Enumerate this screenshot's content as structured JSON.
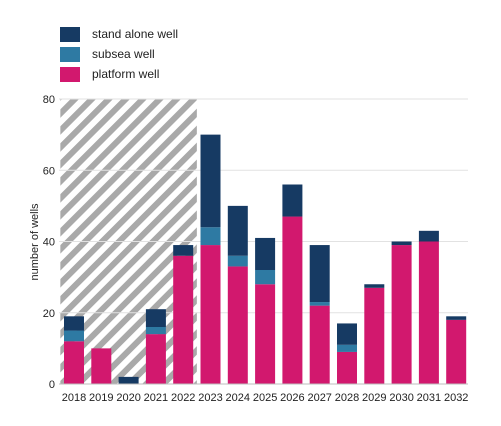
{
  "chart_data": {
    "type": "bar",
    "stacked": true,
    "categories": [
      "2018",
      "2019",
      "2020",
      "2021",
      "2022",
      "2023",
      "2024",
      "2025",
      "2026",
      "2027",
      "2028",
      "2029",
      "2030",
      "2031",
      "2032"
    ],
    "series": [
      {
        "name": "platform well",
        "color": "#d2186e",
        "values": [
          12,
          10,
          0,
          14,
          36,
          39,
          33,
          28,
          47,
          22,
          9,
          27,
          39,
          40,
          18
        ]
      },
      {
        "name": "subsea well",
        "color": "#2e7aa3",
        "values": [
          3,
          0,
          0,
          2,
          0,
          5,
          3,
          4,
          0,
          1,
          2,
          0,
          0,
          0,
          0
        ]
      },
      {
        "name": "stand alone well",
        "color": "#163a63",
        "values": [
          4,
          0,
          2,
          5,
          3,
          26,
          14,
          9,
          9,
          16,
          6,
          1,
          1,
          3,
          1
        ]
      }
    ],
    "legend": [
      "stand alone well",
      "subsea well",
      "platform well"
    ],
    "ylabel": "number of wells",
    "xlabel": "",
    "ylim": [
      0,
      80
    ],
    "yticks": [
      0,
      20,
      40,
      60,
      80
    ],
    "grid": true,
    "hatched_range": [
      "2018",
      "2022"
    ],
    "legend_position": "top-left"
  }
}
